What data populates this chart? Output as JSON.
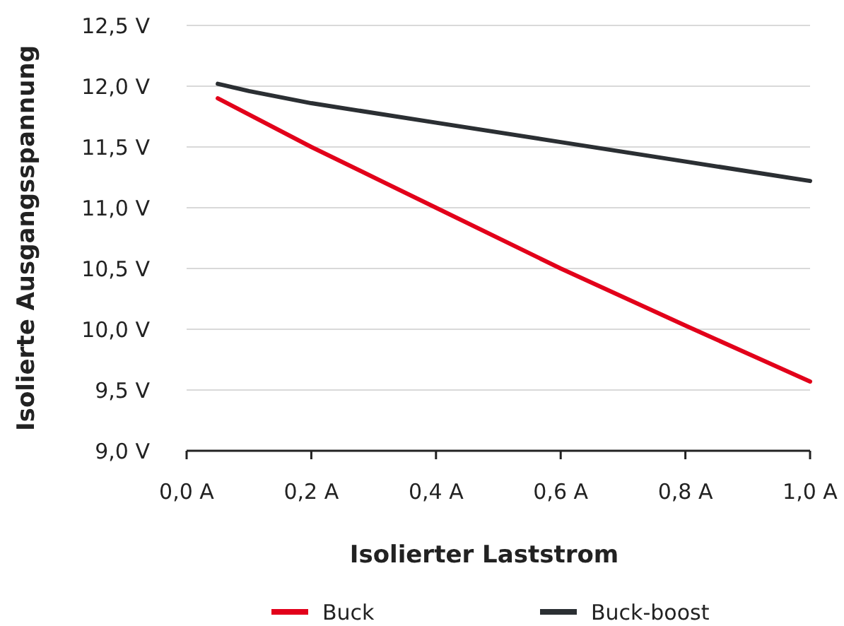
{
  "chart_data": {
    "type": "line",
    "xlabel": "Isolierter Laststrom",
    "ylabel": "Isolierte Ausgangsspannung",
    "xlim": [
      0,
      1
    ],
    "xticks": [
      {
        "value": 0,
        "label": "0,0 A"
      },
      {
        "value": 0.2,
        "label": "0,2 A"
      },
      {
        "value": 0.4,
        "label": "0,4 A"
      },
      {
        "value": 0.6,
        "label": "0,6 A"
      },
      {
        "value": 0.8,
        "label": "0,8 A"
      },
      {
        "value": 1,
        "label": "1,0 A"
      }
    ],
    "ylim": [
      9,
      12.5
    ],
    "yticks": [
      {
        "value": 9,
        "label": "9,0 V"
      },
      {
        "value": 9.5,
        "label": "9,5 V"
      },
      {
        "value": 10,
        "label": "10,0 V"
      },
      {
        "value": 10.5,
        "label": "10,5 V"
      },
      {
        "value": 11,
        "label": "11,0 V"
      },
      {
        "value": 11.5,
        "label": "11,5 V"
      },
      {
        "value": 12,
        "label": "12,0 V"
      },
      {
        "value": 12.5,
        "label": "12,5 V"
      }
    ],
    "grid": "y",
    "legend": "bottom",
    "marker": "none",
    "line_style": "solid",
    "series": [
      {
        "name": "Buck",
        "color": "#e2001a",
        "x": [
          0.05,
          0.2,
          0.4,
          0.6,
          0.8,
          1.0
        ],
        "values": [
          11.9,
          11.5,
          11.0,
          10.5,
          10.03,
          9.57
        ]
      },
      {
        "name": "Buck-boost",
        "color": "#2b2f33",
        "x": [
          0.05,
          0.1,
          0.2,
          0.4,
          0.6,
          0.8,
          1.0
        ],
        "values": [
          12.02,
          11.96,
          11.86,
          11.7,
          11.54,
          11.38,
          11.22
        ]
      }
    ]
  }
}
